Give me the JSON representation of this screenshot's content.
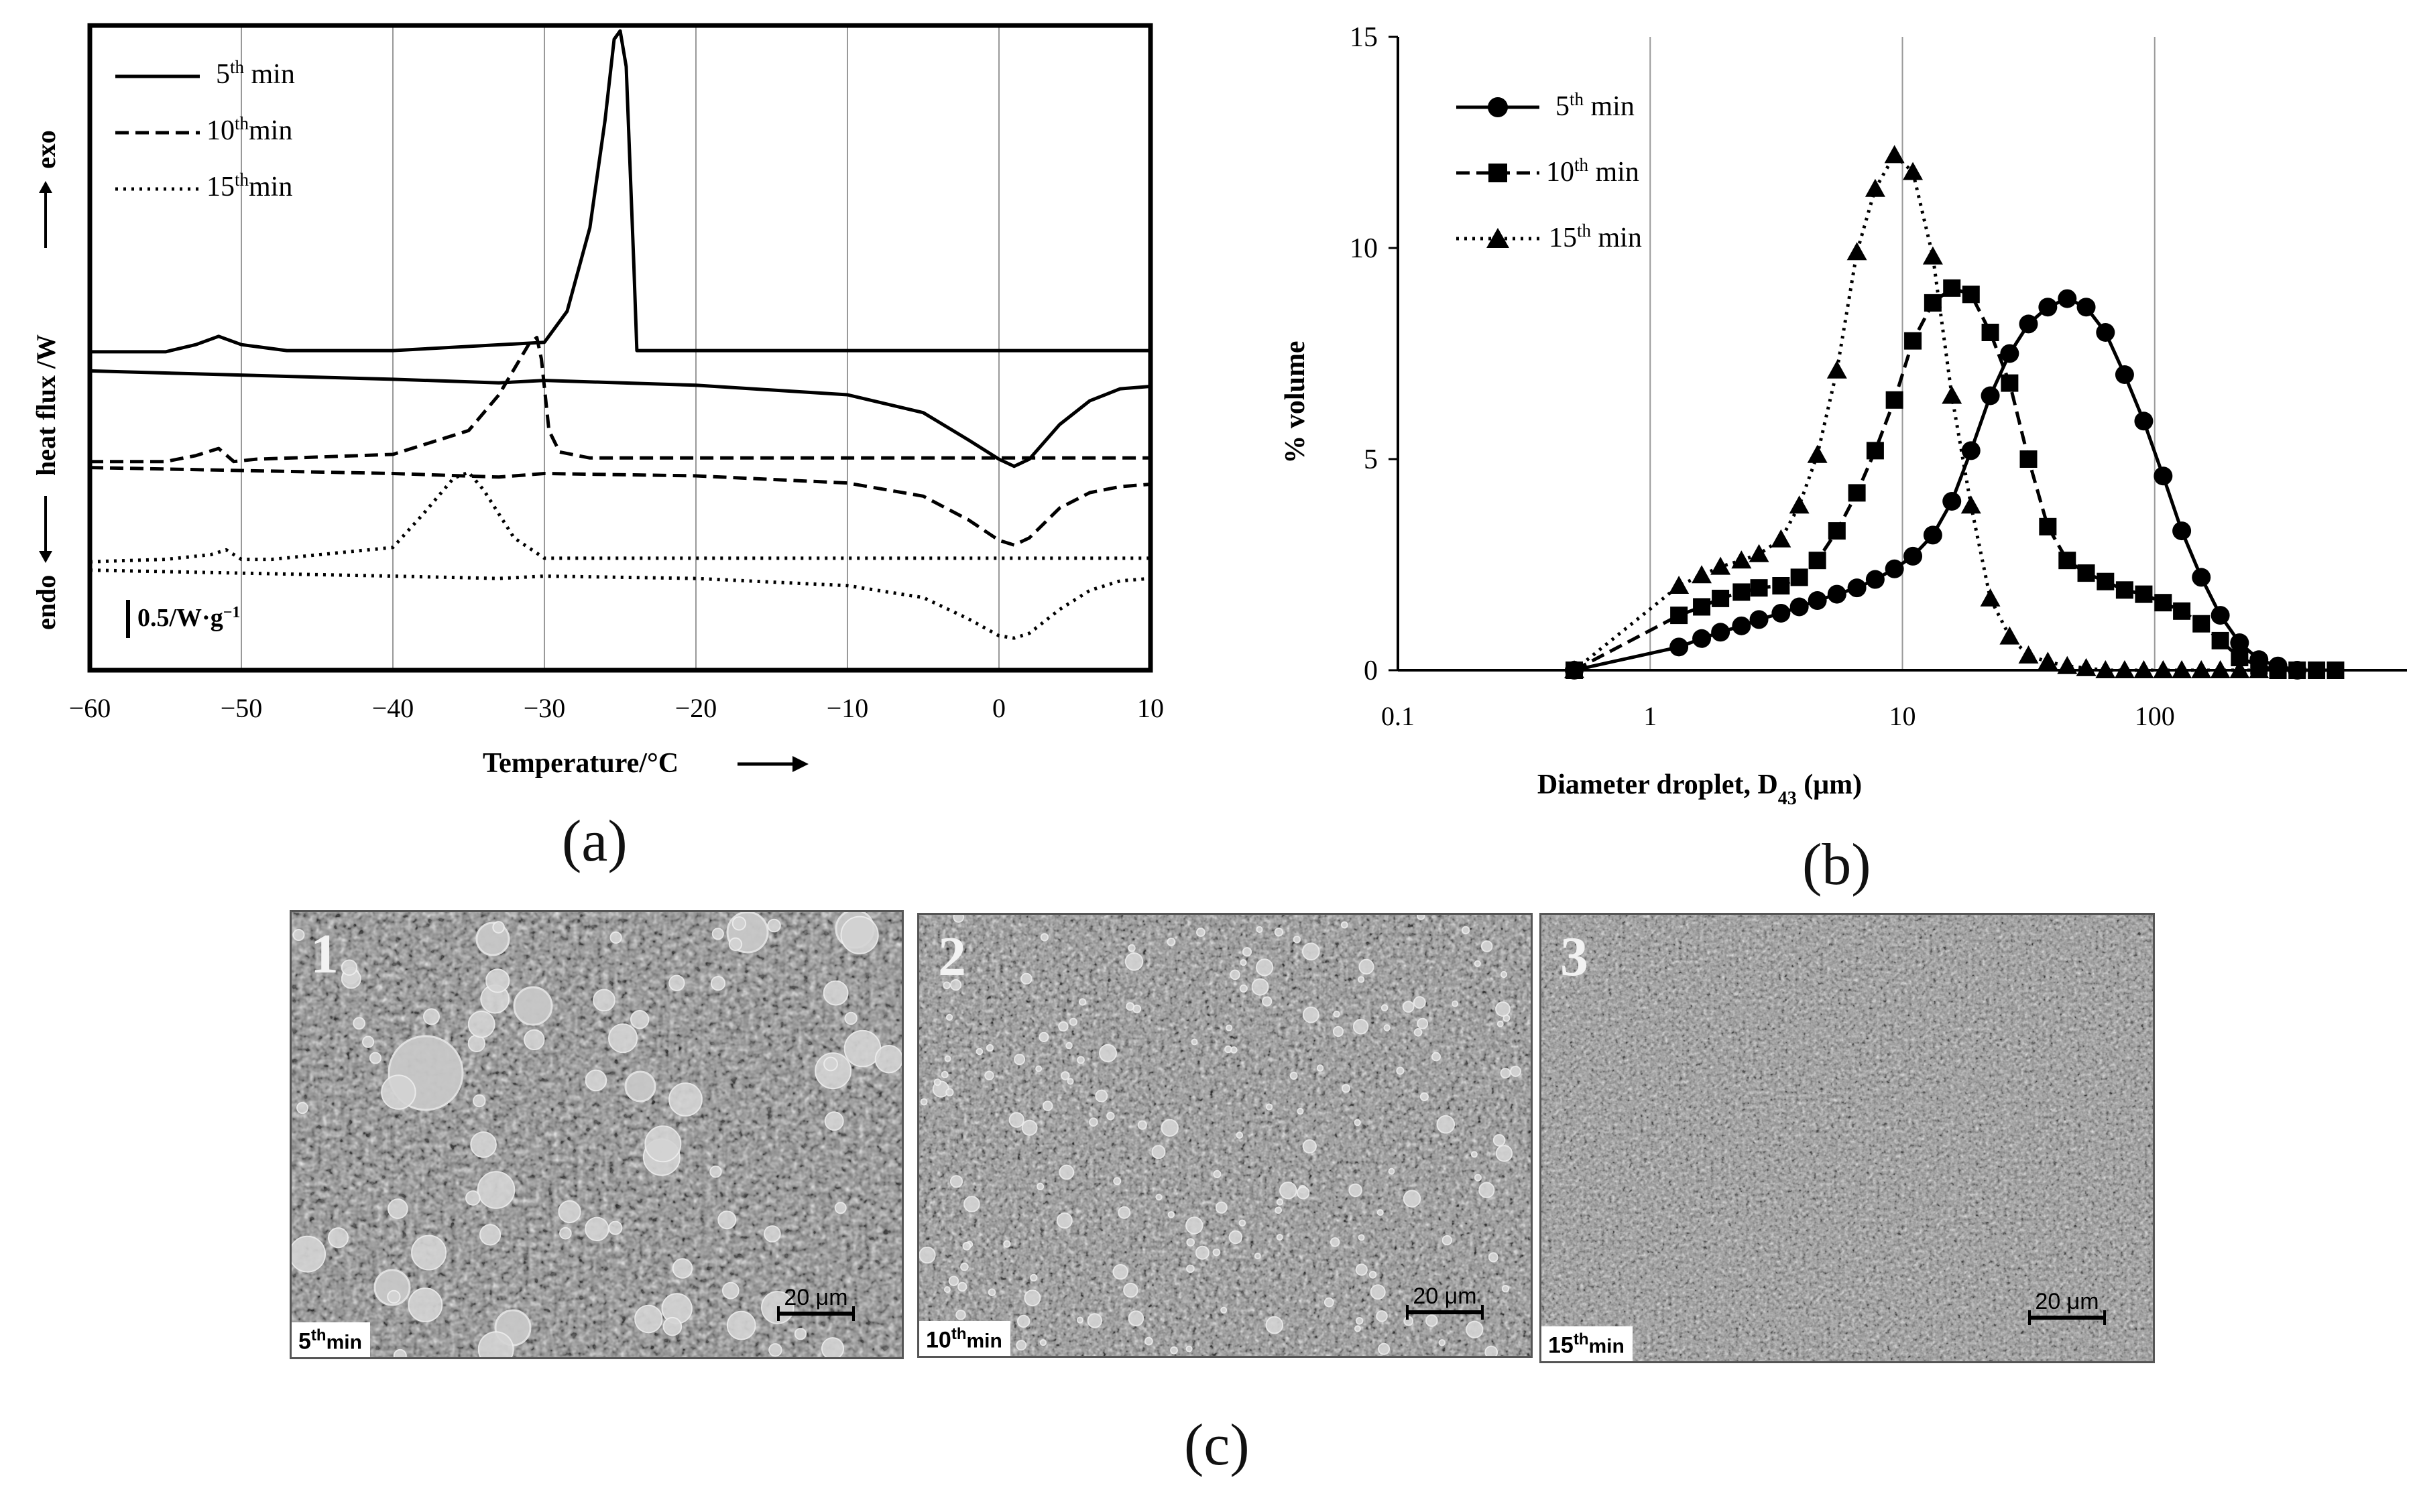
{
  "chart_data": [
    {
      "id": "a",
      "type": "line",
      "panel_label": "(a)",
      "xlabel": "Temperature/°C",
      "ylabel_top": "exo",
      "ylabel_mid": "heat flux /W",
      "ylabel_bottom": "endo",
      "xlim": [
        -60,
        10
      ],
      "xticks": [
        "−60",
        "−50",
        "−40",
        "−30",
        "−20",
        "−10",
        "0",
        "10"
      ],
      "grid": true,
      "scale_bar_label": "0.5/W·g",
      "scale_bar_exp": "−1",
      "legend": [
        {
          "base": "5",
          "sup": "th",
          "unit": " min",
          "style": "solid"
        },
        {
          "base": "10",
          "sup": "th",
          "unit": "min",
          "style": "dashed"
        },
        {
          "base": "15",
          "sup": "th",
          "unit": "min",
          "style": "dotted"
        }
      ],
      "series": [
        {
          "name": "5th min cooling",
          "style": "solid",
          "x": [
            -60,
            -55,
            -53,
            -51.5,
            -50,
            -47,
            -40,
            -30,
            -28.5,
            -27,
            -26,
            -25.4,
            -25,
            -24.6,
            -24.1,
            -23.9,
            -20,
            0,
            10
          ],
          "y": [
            1.86,
            1.86,
            1.92,
            1.99,
            1.92,
            1.87,
            1.87,
            1.94,
            2.2,
            2.9,
            3.8,
            4.48,
            4.55,
            4.25,
            2.6,
            1.87,
            1.87,
            1.87,
            1.87
          ]
        },
        {
          "name": "5th min heating",
          "style": "solid",
          "x": [
            -60,
            -40,
            -33,
            -30,
            -20,
            -10,
            -5,
            -2,
            0,
            1,
            2,
            4,
            6,
            8,
            10
          ],
          "y": [
            1.7,
            1.63,
            1.6,
            1.62,
            1.58,
            1.5,
            1.35,
            1.12,
            0.96,
            0.9,
            0.96,
            1.25,
            1.45,
            1.55,
            1.57
          ]
        },
        {
          "name": "10th min cooling",
          "style": "dashed",
          "x": [
            -60,
            -55,
            -53,
            -51.5,
            -50.5,
            -49,
            -40,
            -35,
            -33,
            -31,
            -30.5,
            -30.2,
            -29.7,
            -29,
            -27,
            -20,
            0,
            10
          ],
          "y": [
            0.94,
            0.94,
            0.99,
            1.05,
            0.94,
            0.96,
            1.0,
            1.2,
            1.5,
            1.93,
            1.98,
            1.8,
            1.2,
            1.02,
            0.97,
            0.97,
            0.97,
            0.97
          ]
        },
        {
          "name": "10th min heating",
          "style": "dashed",
          "x": [
            -60,
            -40,
            -33,
            -30,
            -20,
            -10,
            -5,
            -2,
            0,
            1,
            2,
            4,
            6,
            8,
            10
          ],
          "y": [
            0.89,
            0.84,
            0.81,
            0.84,
            0.82,
            0.76,
            0.65,
            0.45,
            0.28,
            0.24,
            0.3,
            0.55,
            0.68,
            0.73,
            0.75
          ]
        },
        {
          "name": "15th min cooling",
          "style": "dotted",
          "x": [
            -60,
            -55,
            -52,
            -51,
            -50,
            -48,
            -40,
            -38,
            -36,
            -35,
            -34,
            -32,
            -30,
            -25,
            0,
            10
          ],
          "y": [
            0.1,
            0.12,
            0.16,
            0.2,
            0.12,
            0.12,
            0.22,
            0.5,
            0.8,
            0.85,
            0.7,
            0.3,
            0.13,
            0.13,
            0.13,
            0.13
          ]
        },
        {
          "name": "15th min heating",
          "style": "dotted",
          "x": [
            -60,
            -40,
            -33,
            -30,
            -20,
            -10,
            -5,
            -2,
            0,
            1,
            2,
            4,
            6,
            8,
            10
          ],
          "y": [
            0.03,
            -0.02,
            -0.04,
            -0.02,
            -0.04,
            -0.1,
            -0.2,
            -0.38,
            -0.52,
            -0.54,
            -0.5,
            -0.3,
            -0.14,
            -0.06,
            -0.04
          ]
        }
      ]
    },
    {
      "id": "b",
      "type": "line",
      "panel_label": "(b)",
      "xlabel_main": "Diameter droplet, D",
      "xlabel_sub": "43",
      "xlabel_unit": " (μm)",
      "ylabel": "% volume",
      "xscale": "log",
      "xlim": [
        0.1,
        1000
      ],
      "ylim": [
        0,
        15
      ],
      "xticks": [
        "0.1",
        "1",
        "10",
        "100"
      ],
      "yticks": [
        "0",
        "5",
        "10",
        "15"
      ],
      "grid": true,
      "legend": [
        {
          "base": "5",
          "sup": "th",
          "unit": " min",
          "marker": "circle",
          "style": "solid"
        },
        {
          "base": "10",
          "sup": "th",
          "unit": " min",
          "marker": "square",
          "style": "dashed"
        },
        {
          "base": "15",
          "sup": "th",
          "unit": " min",
          "marker": "triangle",
          "style": "dotted"
        }
      ],
      "series": [
        {
          "name": "5th min",
          "marker": "circle",
          "style": "solid",
          "x": [
            0.5,
            1.3,
            1.6,
            1.9,
            2.3,
            2.7,
            3.3,
            3.9,
            4.6,
            5.5,
            6.6,
            7.8,
            9.3,
            11,
            13.2,
            15.7,
            18.7,
            22.3,
            26.6,
            31.6,
            37.7,
            45,
            53.5,
            63.8,
            76,
            90.5,
            108,
            128,
            153,
            182,
            217,
            259,
            308,
            367
          ],
          "y": [
            0,
            0.55,
            0.75,
            0.9,
            1.05,
            1.2,
            1.35,
            1.5,
            1.65,
            1.8,
            1.95,
            2.15,
            2.4,
            2.7,
            3.2,
            4.0,
            5.2,
            6.5,
            7.5,
            8.2,
            8.6,
            8.8,
            8.6,
            8.0,
            7.0,
            5.9,
            4.6,
            3.3,
            2.2,
            1.3,
            0.65,
            0.25,
            0.1,
            0
          ]
        },
        {
          "name": "10th min",
          "marker": "square",
          "style": "dashed",
          "x": [
            0.5,
            1.3,
            1.6,
            1.9,
            2.3,
            2.7,
            3.3,
            3.9,
            4.6,
            5.5,
            6.6,
            7.8,
            9.3,
            11,
            13.2,
            15.7,
            18.7,
            22.3,
            26.6,
            31.6,
            37.7,
            45,
            53.5,
            63.8,
            76,
            90.5,
            108,
            128,
            153,
            182,
            217,
            259,
            308,
            367,
            438,
            521
          ],
          "y": [
            0,
            1.3,
            1.5,
            1.7,
            1.85,
            1.95,
            2.0,
            2.2,
            2.6,
            3.3,
            4.2,
            5.2,
            6.4,
            7.8,
            8.7,
            9.05,
            8.9,
            8.0,
            6.8,
            5.0,
            3.4,
            2.6,
            2.3,
            2.1,
            1.9,
            1.8,
            1.6,
            1.4,
            1.1,
            0.7,
            0.3,
            0.1,
            0,
            0,
            0,
            0
          ]
        },
        {
          "name": "15th min",
          "marker": "triangle",
          "style": "dotted",
          "x": [
            0.5,
            1.3,
            1.6,
            1.9,
            2.3,
            2.7,
            3.3,
            3.9,
            4.6,
            5.5,
            6.6,
            7.8,
            9.3,
            11,
            13.2,
            15.7,
            18.7,
            22.3,
            26.6,
            31.6,
            37.7,
            45,
            53.5,
            63.8,
            76,
            90.5,
            108,
            128,
            153,
            182,
            217,
            259
          ],
          "y": [
            0,
            2.0,
            2.25,
            2.45,
            2.6,
            2.75,
            3.1,
            3.9,
            5.1,
            7.1,
            9.9,
            11.4,
            12.2,
            11.8,
            9.8,
            6.5,
            3.9,
            1.7,
            0.8,
            0.35,
            0.2,
            0.1,
            0.05,
            0,
            0,
            0,
            0,
            0,
            0,
            0,
            0,
            0
          ]
        }
      ]
    }
  ],
  "micrographs": {
    "panel_label": "(c)",
    "items": [
      {
        "number": "1",
        "time_base": "5",
        "time_sup": "th",
        "time_unit": "min",
        "scale": "20 μm"
      },
      {
        "number": "2",
        "time_base": "10",
        "time_sup": "th",
        "time_unit": "min",
        "scale": "20 μm"
      },
      {
        "number": "3",
        "time_base": "15",
        "time_sup": "th",
        "time_unit": "min",
        "scale": "20 μm"
      }
    ]
  }
}
